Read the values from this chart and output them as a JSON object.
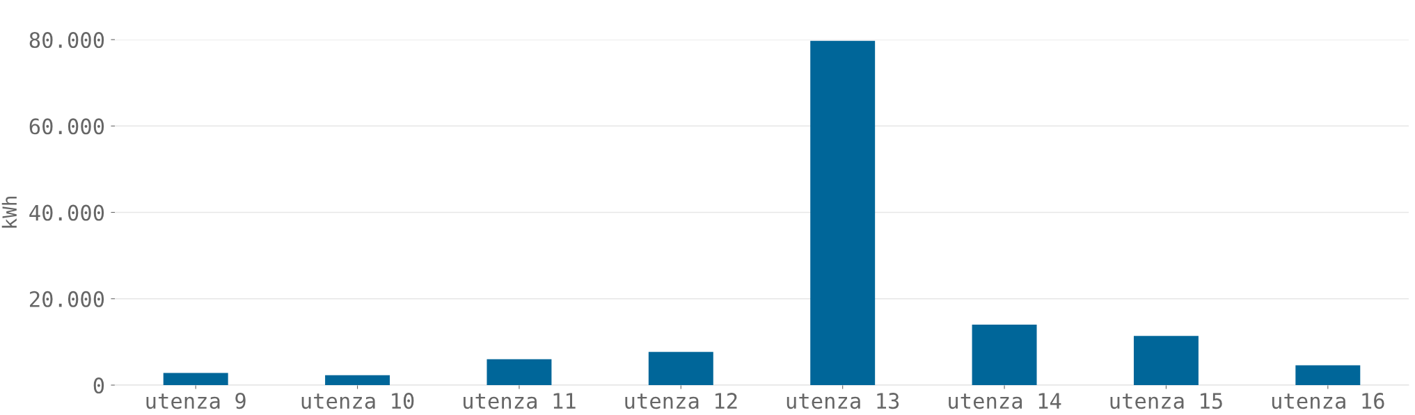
{
  "chart_data": {
    "type": "bar",
    "ylabel": "kWh",
    "categories": [
      "utenza 9",
      "utenza 10",
      "utenza 11",
      "utenza 12",
      "utenza 13",
      "utenza 14",
      "utenza 15",
      "utenza 16"
    ],
    "values": [
      2800,
      2300,
      6000,
      7700,
      79700,
      14000,
      11400,
      4600
    ],
    "color": "#006699",
    "ylim": [
      0,
      80000
    ],
    "yticks": [
      {
        "value": 0,
        "label": "0"
      },
      {
        "value": 20000,
        "label": "20.000"
      },
      {
        "value": 40000,
        "label": "40.000"
      },
      {
        "value": 60000,
        "label": "60.000"
      },
      {
        "value": 80000,
        "label": "80.000"
      }
    ],
    "grid": "y"
  }
}
